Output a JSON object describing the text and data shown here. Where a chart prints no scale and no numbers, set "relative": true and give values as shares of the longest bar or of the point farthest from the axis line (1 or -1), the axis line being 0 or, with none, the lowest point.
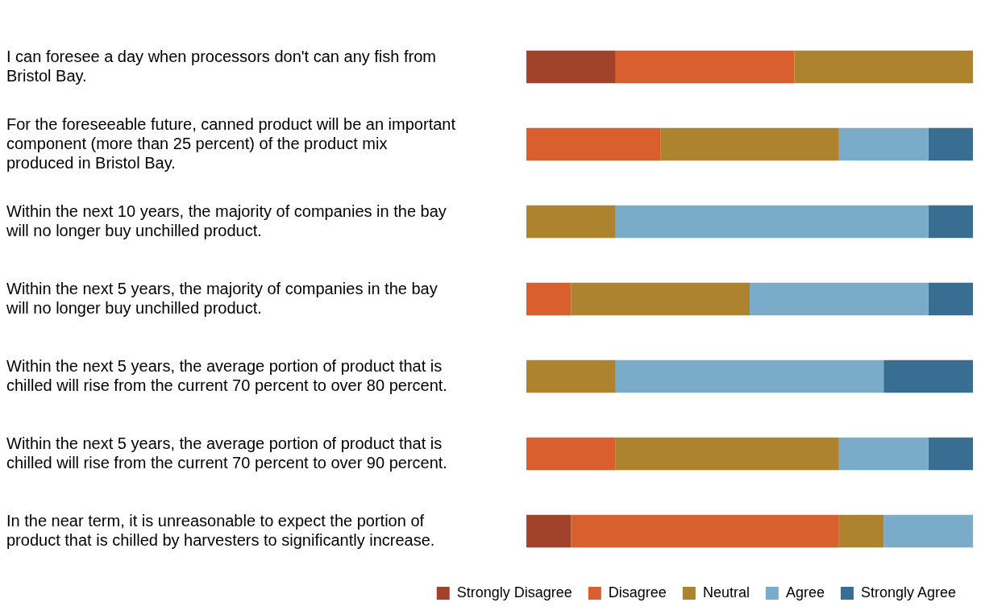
{
  "chart_data": {
    "type": "bar",
    "orientation": "horizontal",
    "stacked": true,
    "relative": true,
    "legend": "bottom",
    "categories": [
      "I can foresee a day when processors don't can any fish from Bristol Bay.",
      "For the foreseeable future, canned product will be an important component (more than 25 percent) of the product mix produced in Bristol Bay.",
      "Within the next 10 years, the majority of companies in the bay will no longer buy unchilled product.",
      "Within the next 5 years, the majority of companies in the bay will no longer buy unchilled product.",
      "Within the next 5 years, the average portion of product that is chilled will rise from the current 70 percent to over 80 percent.",
      "Within the next 5 years, the average portion of product that is chilled will rise from the current 70 percent to over 90 percent.",
      "In the near term, it is unreasonable to expect the portion of product that is chilled by harvesters to significantly increase."
    ],
    "series": [
      {
        "name": "Strongly Disagree",
        "color": "#a0432a",
        "values": [
          0.2,
          0,
          0,
          0,
          0,
          0,
          0.1
        ]
      },
      {
        "name": "Disagree",
        "color": "#d95f2e",
        "values": [
          0.4,
          0.3,
          0,
          0.1,
          0,
          0.2,
          0.6
        ]
      },
      {
        "name": "Neutral",
        "color": "#ad832f",
        "values": [
          0.4,
          0.4,
          0.2,
          0.4,
          0.2,
          0.5,
          0.1
        ]
      },
      {
        "name": "Agree",
        "color": "#7aabc9",
        "values": [
          0,
          0.2,
          0.7,
          0.4,
          0.6,
          0.2,
          0.2
        ]
      },
      {
        "name": "Strongly Agree",
        "color": "#386e91",
        "values": [
          0,
          0.1,
          0.1,
          0.1,
          0.2,
          0.1,
          0
        ]
      }
    ]
  }
}
